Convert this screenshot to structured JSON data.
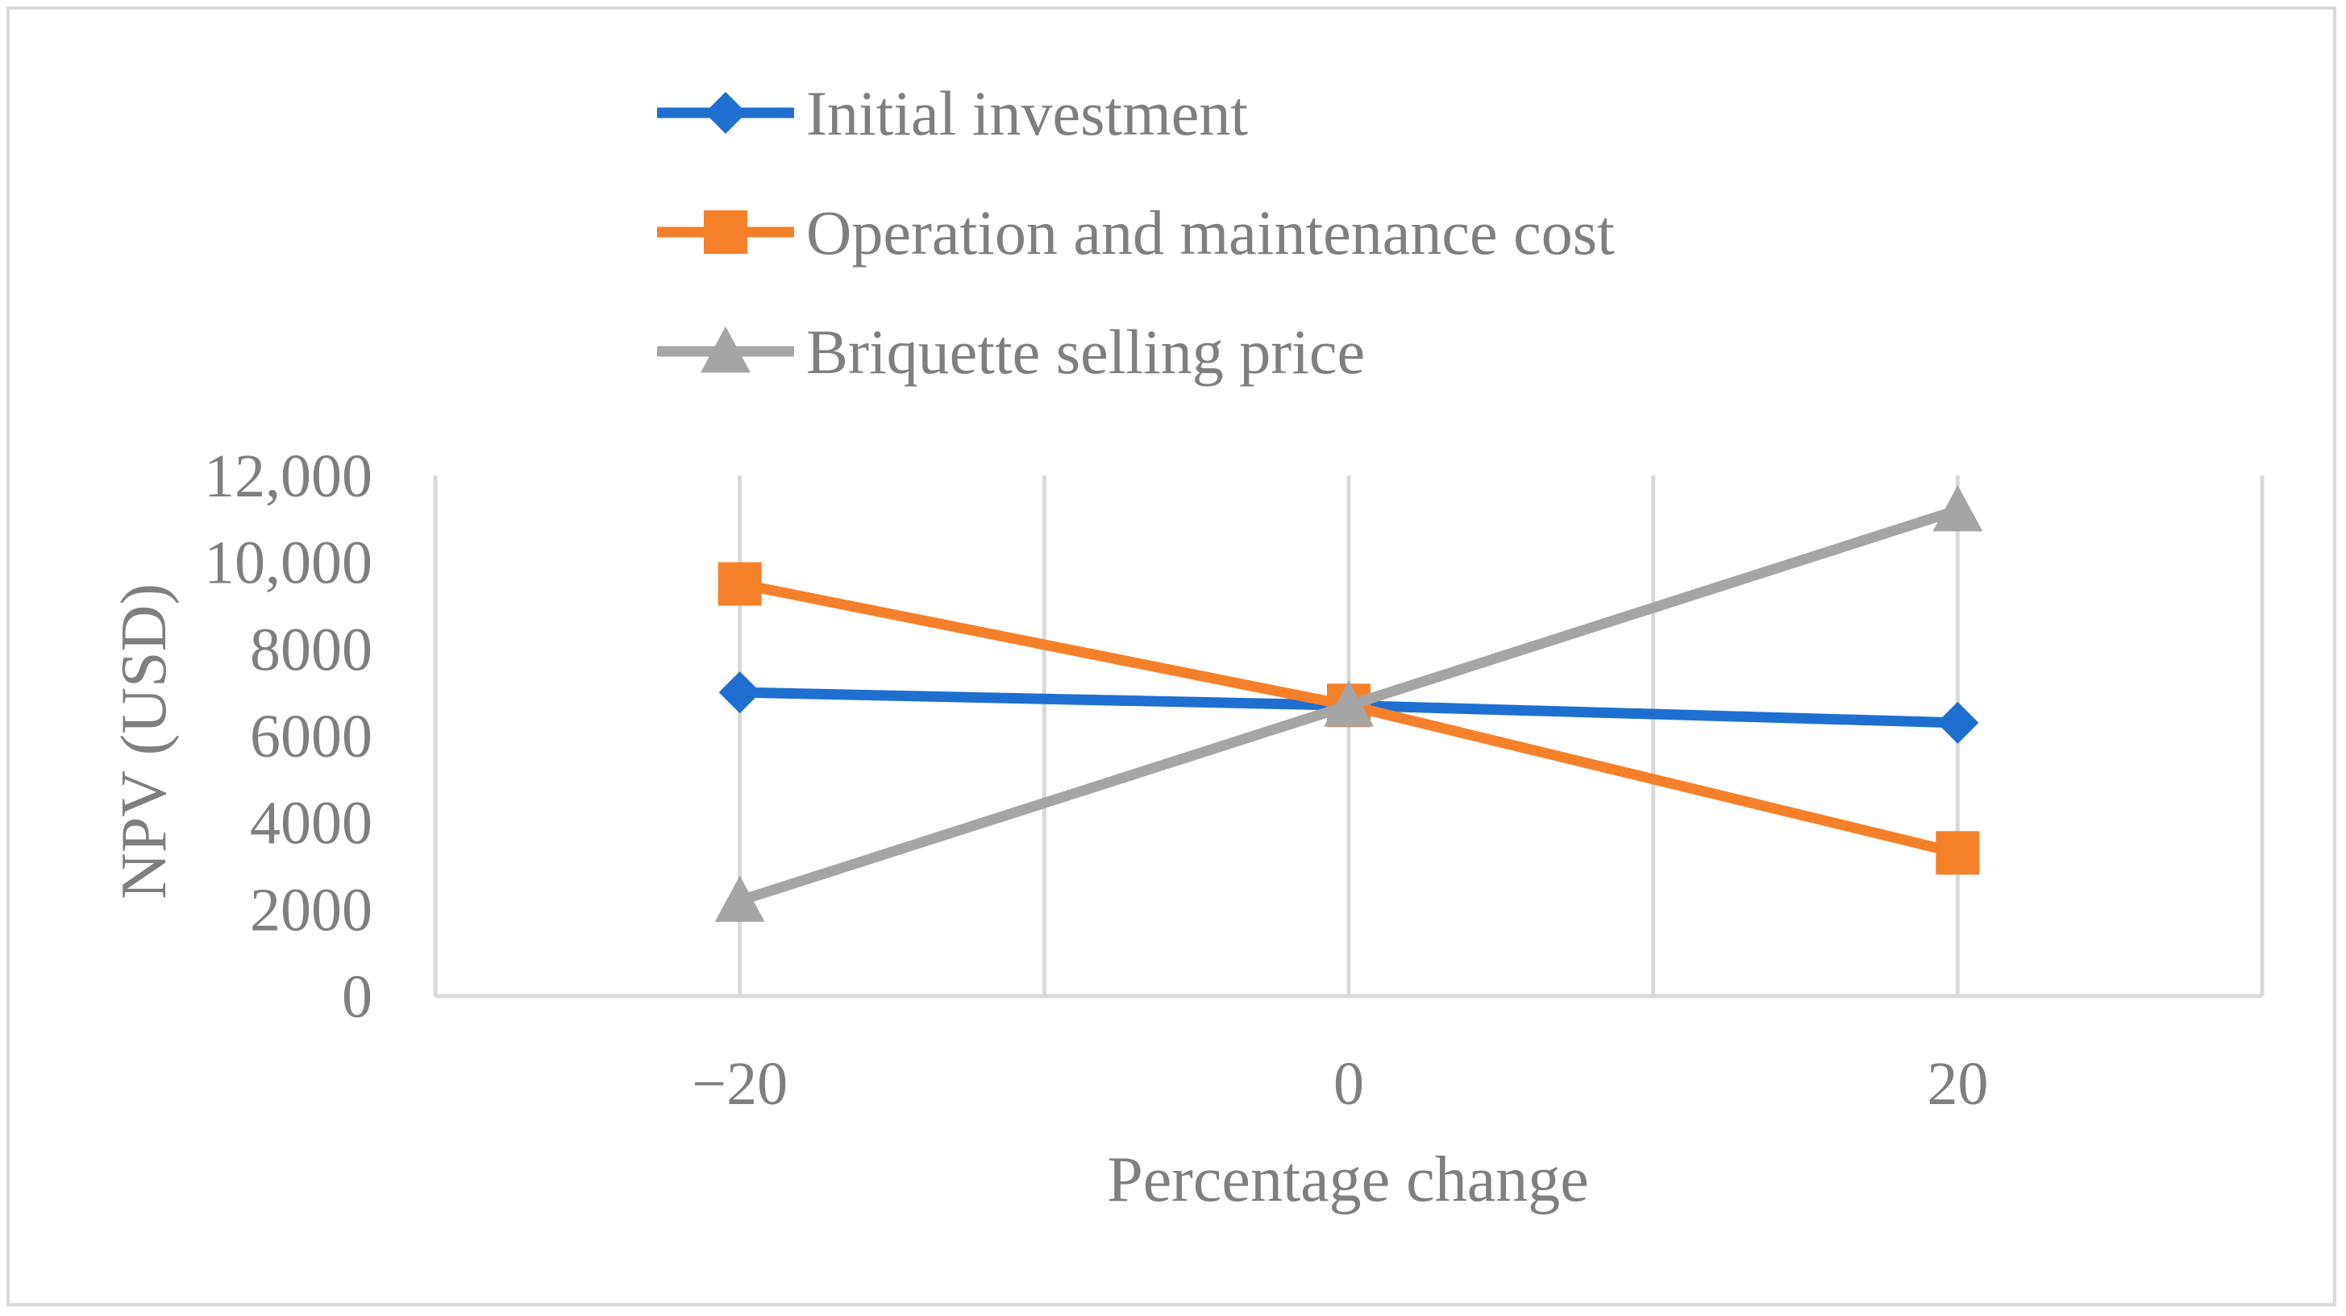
{
  "chart_data": {
    "type": "line",
    "title": "",
    "xlabel": "Percentage change",
    "ylabel": "NPV (USD)",
    "x": [
      -20,
      0,
      20
    ],
    "x_tick_labels": [
      "−20",
      "0",
      "20"
    ],
    "xlim": [
      -30,
      30
    ],
    "ylim": [
      0,
      12000
    ],
    "y_ticks": [
      0,
      2000,
      4000,
      6000,
      8000,
      10000,
      12000
    ],
    "y_tick_labels": [
      "0",
      "2000",
      "4000",
      "6000",
      "8000",
      "10,000",
      "12,000"
    ],
    "grid": "vertical",
    "legend_position": "top",
    "series": [
      {
        "name": "Initial investment",
        "values": [
          7000,
          6700,
          6300
        ],
        "color": "#1f6fd0",
        "marker": "diamond"
      },
      {
        "name": "Operation and maintenance cost",
        "values": [
          9500,
          6700,
          3300
        ],
        "color": "#f5802a",
        "marker": "square"
      },
      {
        "name": "Briquette selling price",
        "values": [
          2200,
          6700,
          11200
        ],
        "color": "#a5a5a5",
        "marker": "triangle"
      }
    ]
  },
  "colors": {
    "axis": "#d9d9d9",
    "text": "#7f7f7f",
    "border": "#d9d9d9"
  }
}
